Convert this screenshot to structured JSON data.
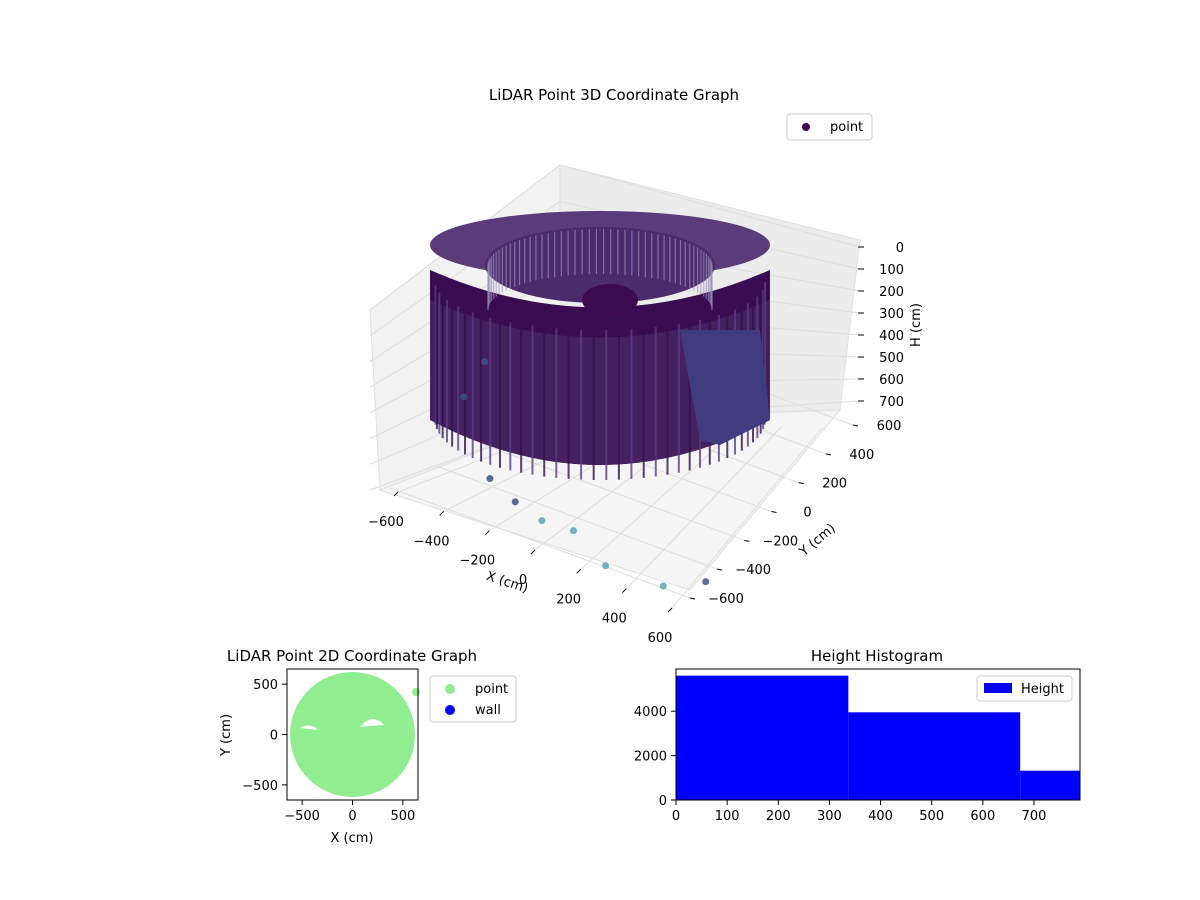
{
  "chart_data": [
    {
      "type": "scatter",
      "title": "LiDAR Point 3D Coordinate Graph",
      "xlabel": "X (cm)",
      "ylabel": "Y (cm)",
      "zlabel": "H (cm)",
      "x_ticks": [
        "−600",
        "−400",
        "−200",
        "0",
        "200",
        "400",
        "600"
      ],
      "y_ticks": [
        "−600",
        "−400",
        "−200",
        "0",
        "200",
        "400",
        "600"
      ],
      "z_ticks": [
        "0",
        "100",
        "200",
        "300",
        "400",
        "500",
        "600",
        "700"
      ],
      "xlim": [
        -650,
        650
      ],
      "ylim": [
        -650,
        650
      ],
      "zlim": [
        0,
        790
      ],
      "z_inverted": true,
      "legend": {
        "labels": [
          "point"
        ],
        "placement": "top-right"
      },
      "grid": true,
      "colors": {
        "point_dark": "#440154",
        "point_mid": "#3b528b",
        "point_light": "#5aa6b6"
      },
      "series": [
        {
          "name": "point",
          "shape": "cylindrical wall of points",
          "radius": 620,
          "h_range": [
            0,
            790
          ],
          "outliers": [
            {
              "x": -620,
              "y": 150,
              "h": 740
            },
            {
              "x": -600,
              "y": -50,
              "h": 760
            },
            {
              "x": -250,
              "y": -430,
              "h": 760
            },
            {
              "x": -100,
              "y": -480,
              "h": 770
            },
            {
              "x": 50,
              "y": -520,
              "h": 770
            },
            {
              "x": 200,
              "y": -520,
              "h": 760
            },
            {
              "x": 400,
              "y": -600,
              "h": 780
            },
            {
              "x": 650,
              "y": -560,
              "h": 790
            },
            {
              "x": 780,
              "y": -440,
              "h": 790
            }
          ]
        }
      ]
    },
    {
      "type": "scatter",
      "title": "LiDAR Point 2D Coordinate Graph",
      "xlabel": "X (cm)",
      "ylabel": "Y (cm)",
      "x_ticks": [
        "−500",
        "0",
        "500"
      ],
      "y_ticks": [
        "500",
        "0",
        "−500"
      ],
      "xlim": [
        -650,
        650
      ],
      "ylim": [
        -650,
        650
      ],
      "legend": {
        "labels": [
          "point",
          "wall"
        ],
        "placement": "outside right"
      },
      "colors": {
        "point": "#90ee90",
        "wall": "#0000ff"
      },
      "series": [
        {
          "name": "point",
          "shape": "filled disc",
          "radius": 620
        },
        {
          "name": "wall",
          "values": []
        }
      ]
    },
    {
      "type": "bar",
      "title": "Height Histogram",
      "xlabel": "",
      "ylabel": "",
      "x_ticks": [
        "0",
        "100",
        "200",
        "300",
        "400",
        "500",
        "600",
        "700"
      ],
      "y_ticks": [
        "0",
        "2000",
        "4000"
      ],
      "xlim": [
        0,
        790
      ],
      "ylim": [
        0,
        5900
      ],
      "legend": {
        "labels": [
          "Height"
        ],
        "placement": "top-right"
      },
      "colors": {
        "bar": "#0000ff"
      },
      "bins": [
        {
          "from": 0,
          "to": 337,
          "value": 5600
        },
        {
          "from": 337,
          "to": 673,
          "value": 3950
        },
        {
          "from": 673,
          "to": 790,
          "value": 1320
        }
      ]
    }
  ]
}
